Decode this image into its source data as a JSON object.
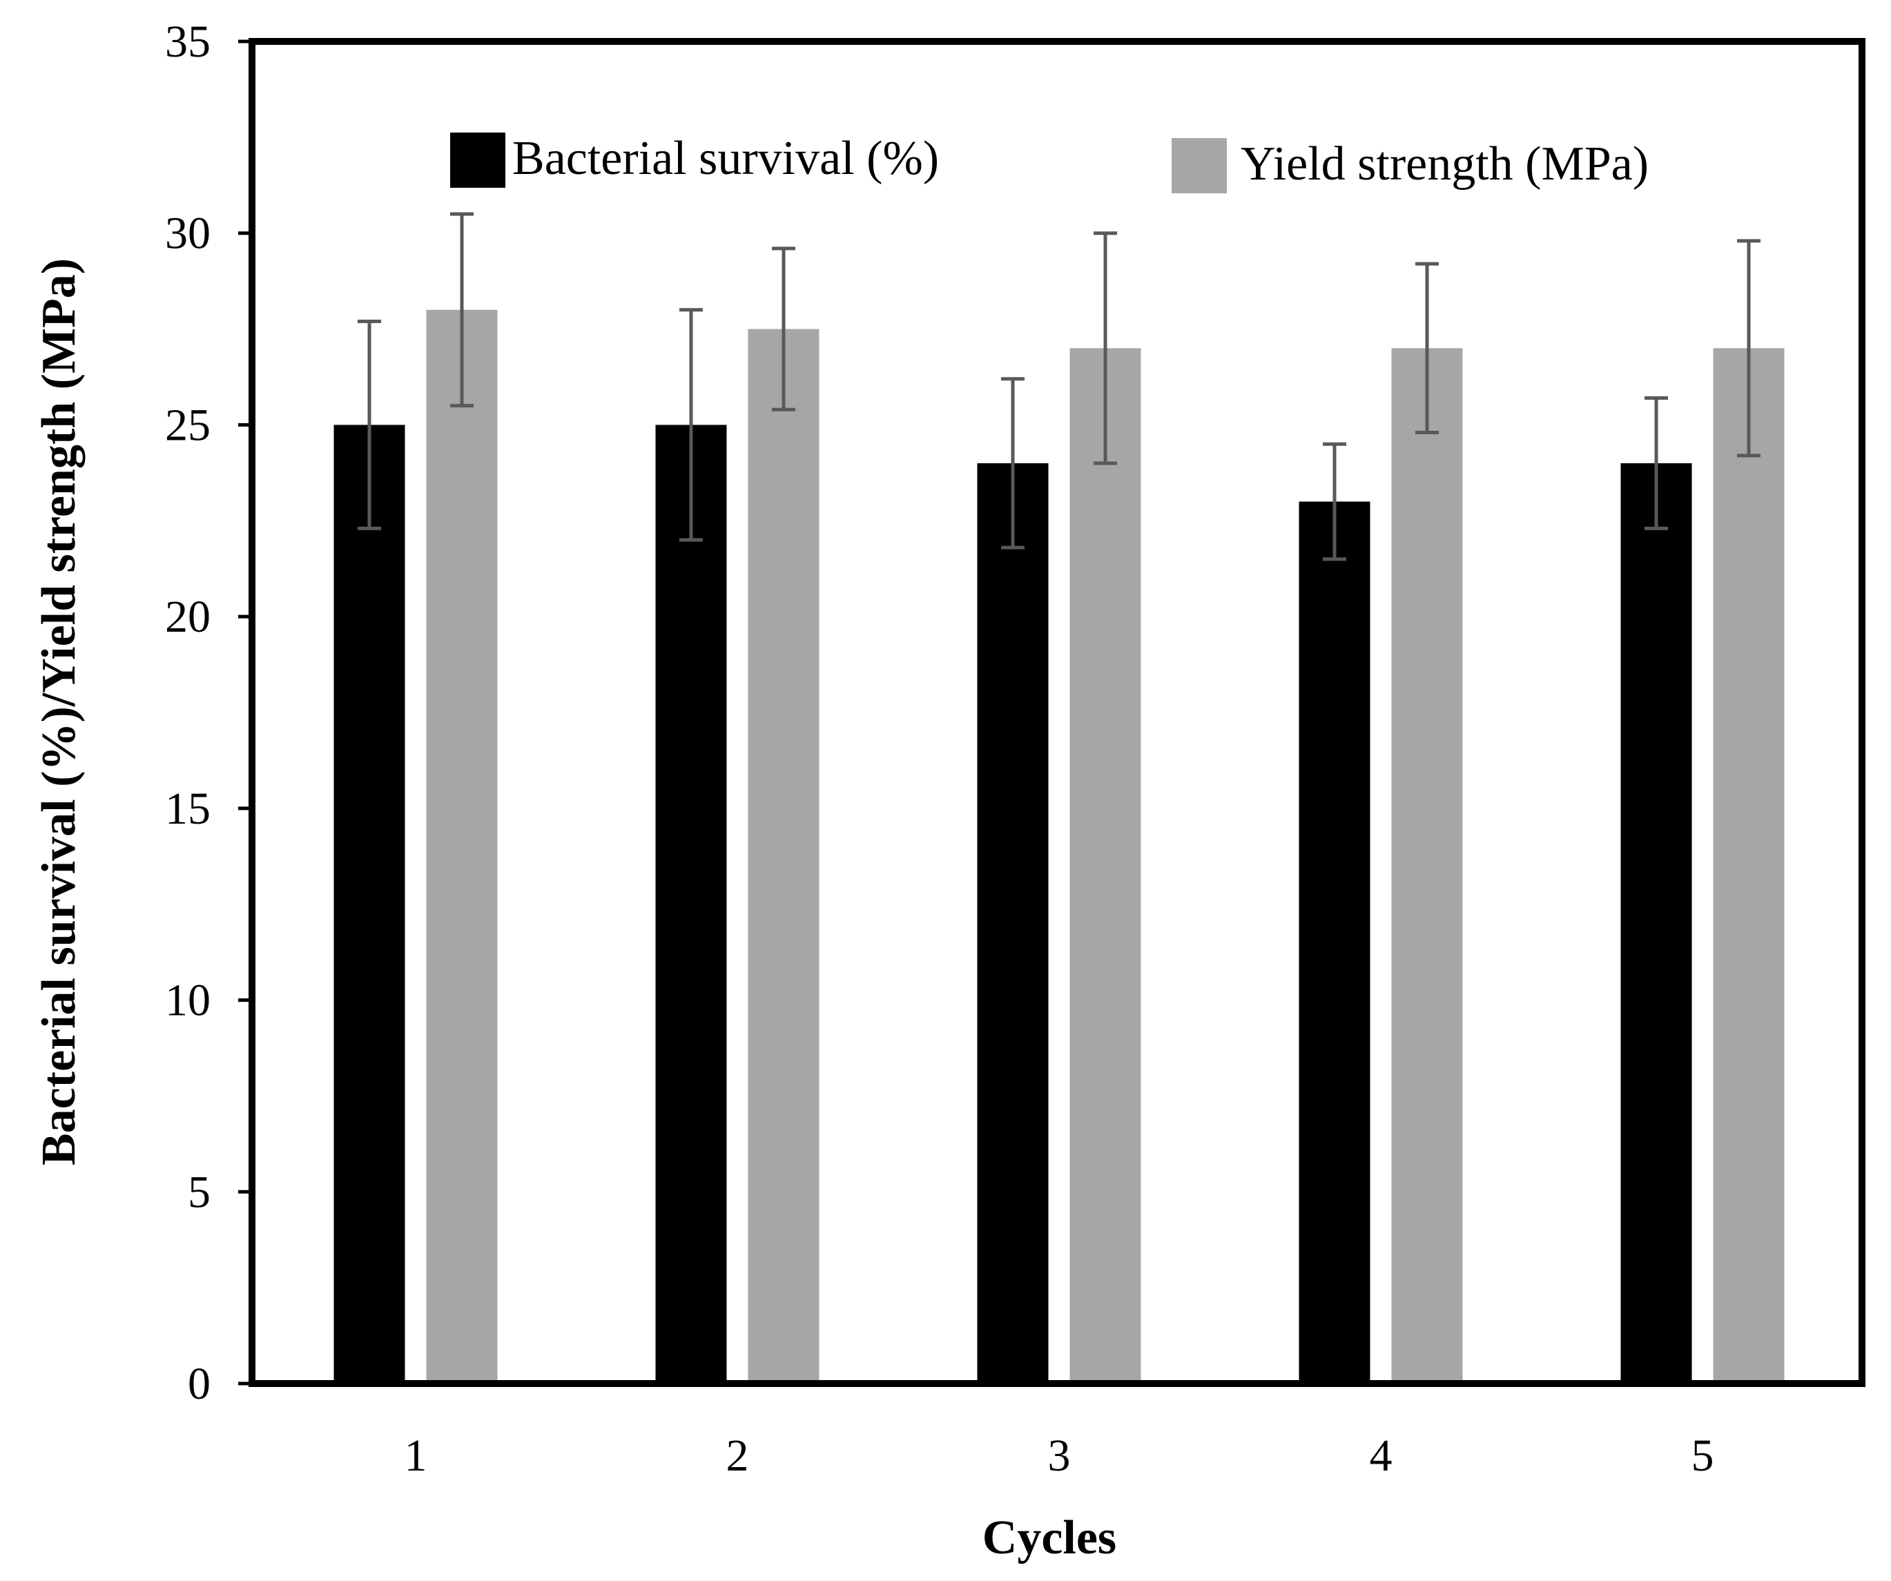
{
  "chart_data": {
    "type": "bar",
    "title": "",
    "xlabel": "Cycles",
    "ylabel": "Bacterial survival (%)/Yield strength (MPa)",
    "categories": [
      "1",
      "2",
      "3",
      "4",
      "5"
    ],
    "ylim": [
      0,
      35
    ],
    "yticks": [
      0,
      5,
      10,
      15,
      20,
      25,
      30,
      35
    ],
    "grid": false,
    "legend_position": "top",
    "series": [
      {
        "name": "Bacterial survival (%)",
        "color": "#000000",
        "values": [
          25,
          25,
          24,
          23,
          24
        ],
        "error": [
          2.7,
          3.0,
          2.2,
          1.5,
          1.7
        ]
      },
      {
        "name": "Yield strength (MPa)",
        "color": "#a6a6a6",
        "values": [
          28,
          27.5,
          27,
          27,
          27
        ],
        "error": [
          2.5,
          2.1,
          3.0,
          2.2,
          2.8
        ]
      }
    ],
    "error_bar_color": "#595959"
  }
}
